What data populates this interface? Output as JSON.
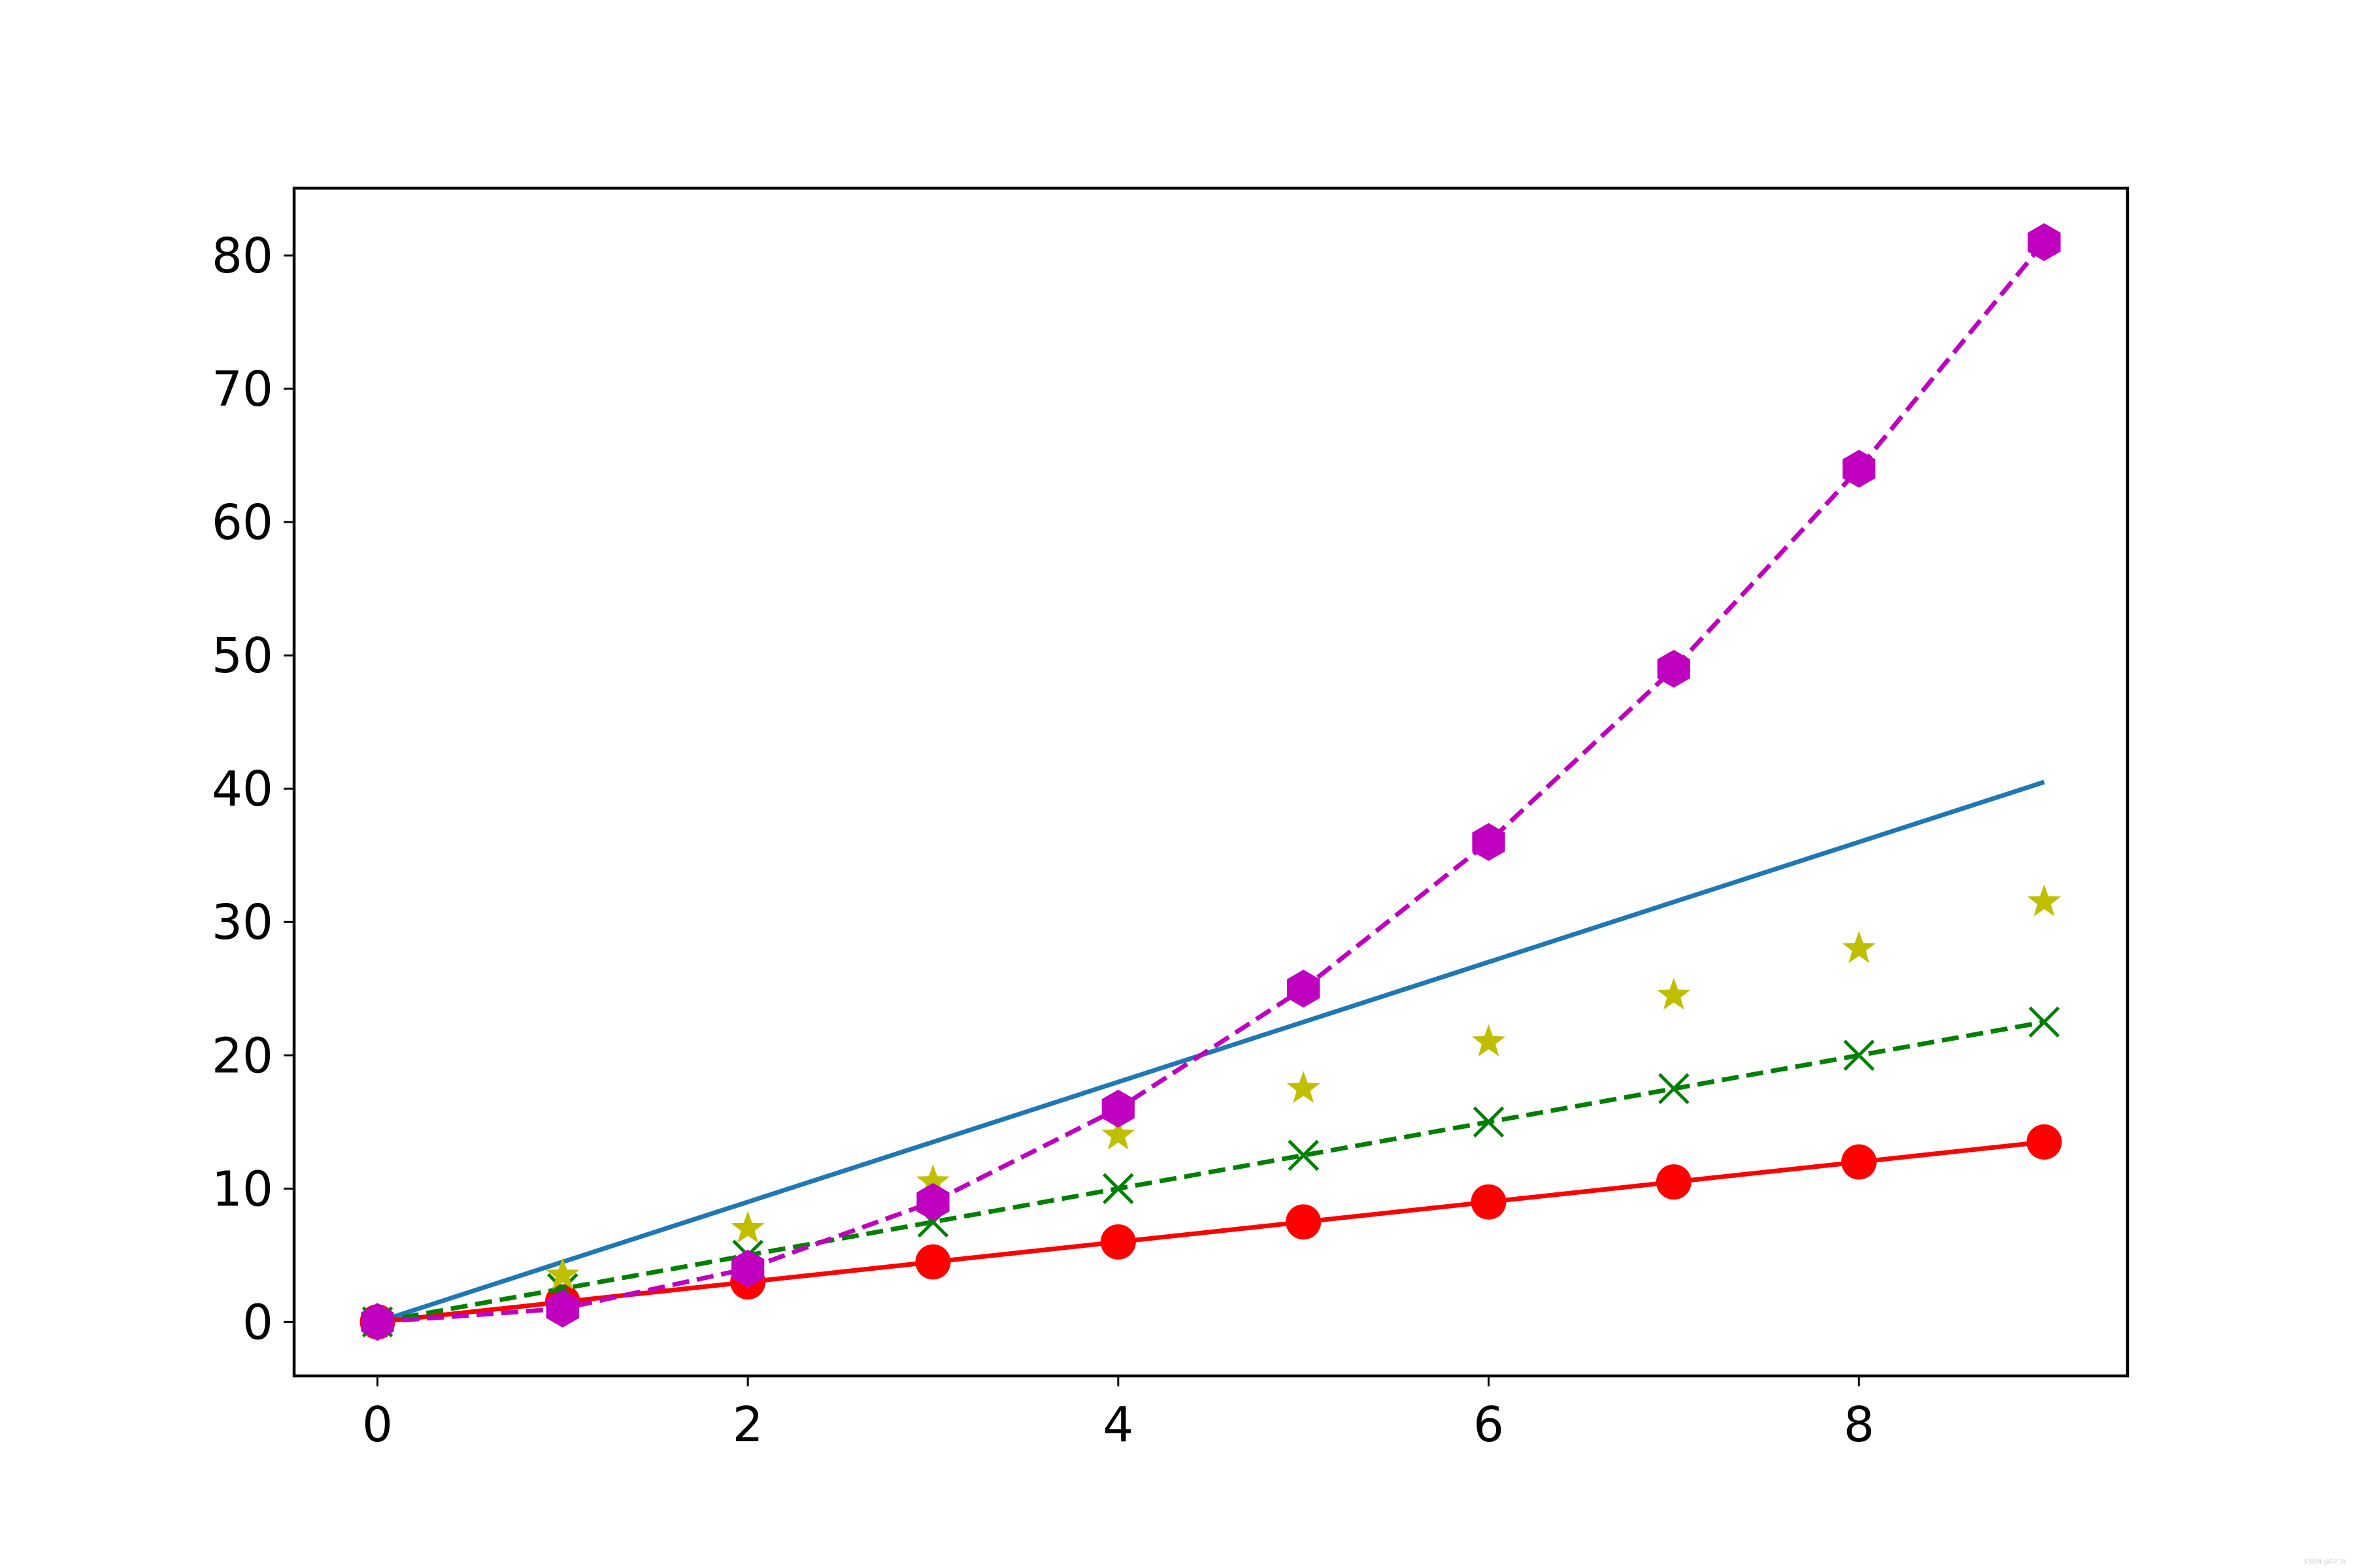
{
  "chart_data": {
    "type": "line",
    "title": "",
    "xlabel": "",
    "ylabel": "",
    "xlim": [
      -0.45,
      9.45
    ],
    "ylim": [
      -4.05,
      85.05
    ],
    "x_ticks": [
      0,
      2,
      4,
      6,
      8
    ],
    "y_ticks": [
      0,
      10,
      20,
      30,
      40,
      50,
      60,
      70,
      80
    ],
    "grid": false,
    "legend": "none",
    "x": [
      0,
      1,
      2,
      3,
      4,
      5,
      6,
      7,
      8,
      9
    ],
    "series": [
      {
        "color": "#1f77b4",
        "line": "solid",
        "marker": "none",
        "values": [
          0,
          4.5,
          9,
          13.5,
          18,
          22.5,
          27,
          31.5,
          36,
          40.5
        ]
      },
      {
        "color": "#ff0000",
        "line": "solid",
        "marker": "circle",
        "values": [
          0,
          1.5,
          3,
          4.5,
          6,
          7.5,
          9,
          10.5,
          12,
          13.5
        ]
      },
      {
        "color": "#008000",
        "line": "dashed",
        "marker": "x",
        "values": [
          0,
          2.5,
          5,
          7.5,
          10,
          12.5,
          15,
          17.5,
          20,
          22.5
        ]
      },
      {
        "color": "#bfbf00",
        "line": "none",
        "marker": "star",
        "values": [
          0,
          3.5,
          7,
          10.5,
          14,
          17.5,
          21,
          24.5,
          28,
          31.5
        ]
      },
      {
        "color": "#bf00bf",
        "line": "dashed",
        "marker": "hexagon",
        "values": [
          0,
          1,
          4,
          9,
          16,
          25,
          36,
          49,
          64,
          81
        ]
      }
    ]
  },
  "watermark": "CSDN @D7.1k"
}
